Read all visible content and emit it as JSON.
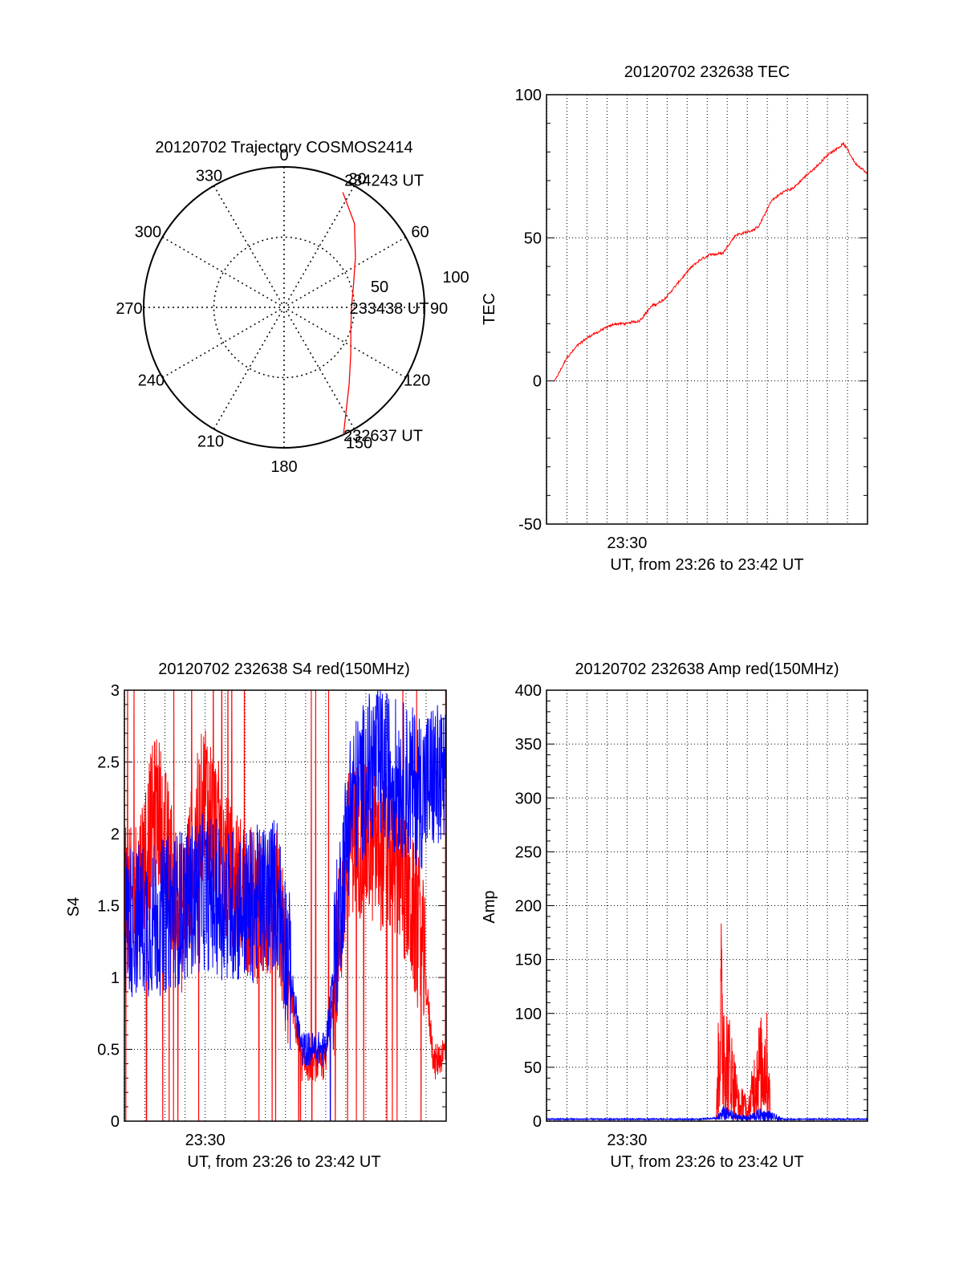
{
  "chart_data": [
    {
      "type": "polar",
      "title": "20120702 Trajectory COSMOS2414",
      "angle_labels": [
        "0",
        "30",
        "60",
        "90",
        "120",
        "150",
        "180",
        "210",
        "240",
        "270",
        "300",
        "330"
      ],
      "radial_labels": [
        "50",
        "100"
      ],
      "rlim": [
        0,
        100
      ],
      "grid": true,
      "series": [
        {
          "color": "#ff0000",
          "points": [
            {
              "az": 155,
              "r": 100
            },
            {
              "az": 140,
              "r": 72
            },
            {
              "az": 125,
              "r": 58
            },
            {
              "az": 108,
              "r": 50
            },
            {
              "az": 90,
              "r": 48
            },
            {
              "az": 72,
              "r": 52
            },
            {
              "az": 55,
              "r": 62
            },
            {
              "az": 40,
              "r": 78
            },
            {
              "az": 27,
              "r": 92
            }
          ]
        }
      ],
      "annotations": [
        {
          "text": "234243 UT",
          "az": 27,
          "r": 92
        },
        {
          "text": "233438 UT",
          "az": 90,
          "r": 48
        },
        {
          "text": "232637 UT",
          "az": 155,
          "r": 100
        }
      ]
    },
    {
      "type": "line",
      "title": "20120702 232638 TEC",
      "xlabel": "UT, from 23:26 to 23:42 UT",
      "ylabel": "TEC",
      "xlim": [
        23.433,
        23.7
      ],
      "ylim": [
        -50,
        100
      ],
      "yticks": [
        "100",
        "50",
        "0",
        "-50"
      ],
      "xtick_labels": [
        "23:30"
      ],
      "grid": true,
      "series": [
        {
          "color": "#ff0000",
          "x": [
            23.44,
            23.45,
            23.46,
            23.47,
            23.48,
            23.49,
            23.5,
            23.51,
            23.52,
            23.53,
            23.54,
            23.55,
            23.56,
            23.57,
            23.58,
            23.59,
            23.6,
            23.61,
            23.62,
            23.63,
            23.64,
            23.65,
            23.66,
            23.67,
            23.68,
            23.69,
            23.7
          ],
          "y": [
            0,
            8,
            13,
            16,
            18,
            20,
            20,
            21,
            26,
            28,
            33,
            38,
            42,
            44,
            45,
            51,
            52,
            54,
            63,
            66,
            68,
            72,
            76,
            80,
            83,
            76,
            72
          ]
        }
      ]
    },
    {
      "type": "line",
      "title": "20120702 232638 S4 red(150MHz)",
      "xlabel": "UT, from 23:26 to 23:42 UT",
      "ylabel": "S4",
      "xlim": [
        23.433,
        23.7
      ],
      "ylim": [
        0,
        3
      ],
      "yticks": [
        "3",
        "2.5",
        "2",
        "1.5",
        "1",
        "0.5",
        "0"
      ],
      "xtick_labels": [
        "23:30"
      ],
      "grid": true,
      "series": [
        {
          "color": "#ff0000",
          "x": [
            23.44,
            23.46,
            23.48,
            23.5,
            23.52,
            23.54,
            23.56,
            23.58,
            23.6,
            23.62,
            23.64,
            23.66,
            23.68,
            23.69,
            23.7
          ],
          "y": [
            1.5,
            2.2,
            1.4,
            2.3,
            1.7,
            1.5,
            1.5,
            0.4,
            0.4,
            2.0,
            1.9,
            1.8,
            1.2,
            0.4,
            0.5
          ]
        },
        {
          "color": "#0000ff",
          "x": [
            23.44,
            23.46,
            23.48,
            23.5,
            23.52,
            23.54,
            23.56,
            23.58,
            23.6,
            23.62,
            23.64,
            23.66,
            23.68,
            23.69,
            23.7
          ],
          "y": [
            1.4,
            1.4,
            1.5,
            1.6,
            1.5,
            1.5,
            1.6,
            0.5,
            0.5,
            2.2,
            2.5,
            2.4,
            2.3,
            2.4,
            2.3
          ]
        }
      ]
    },
    {
      "type": "line",
      "title": "20120702 232638 Amp red(150MHz)",
      "xlabel": "UT, from 23:26 to 23:42 UT",
      "ylabel": "Amp",
      "xlim": [
        23.433,
        23.7
      ],
      "ylim": [
        0,
        400
      ],
      "yticks": [
        "400",
        "350",
        "300",
        "250",
        "200",
        "150",
        "100",
        "50",
        "0"
      ],
      "xtick_labels": [
        "23:30"
      ],
      "grid": true,
      "series": [
        {
          "color": "#ff0000",
          "x": [
            23.56,
            23.574,
            23.578,
            23.582,
            23.586,
            23.59,
            23.594,
            23.597,
            23.6,
            23.604,
            23.608,
            23.612,
            23.616,
            23.618,
            23.62,
            23.63
          ],
          "y": [
            0,
            0,
            200,
            120,
            95,
            60,
            20,
            40,
            10,
            50,
            90,
            100,
            110,
            60,
            0,
            0
          ]
        },
        {
          "color": "#0000ff",
          "x": [
            23.44,
            23.5,
            23.56,
            23.574,
            23.58,
            23.59,
            23.6,
            23.61,
            23.618,
            23.63,
            23.7
          ],
          "y": [
            2,
            2,
            2,
            3,
            15,
            8,
            5,
            12,
            10,
            2,
            2
          ]
        }
      ]
    }
  ]
}
